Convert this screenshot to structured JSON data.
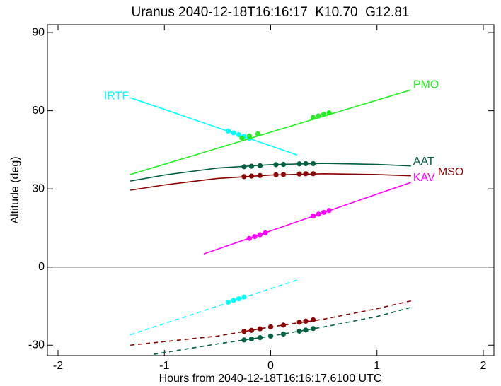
{
  "chart_data": {
    "type": "line",
    "title": "Uranus 2040-12-18T16:16:17  K10.70  G12.81",
    "xlabel": "Hours from 2040-12-18T16:16:17.6100 UTC",
    "ylabel": "Altitude (deg)",
    "xlim": [
      -2.1,
      2.1
    ],
    "xticks": [
      -2,
      -1,
      0,
      1,
      2
    ],
    "ylim": [
      -34,
      93
    ],
    "yticks": [
      -30,
      0,
      30,
      60,
      90
    ],
    "hline": 0,
    "series": [
      {
        "name": "IRTF",
        "color": "#00ffff",
        "label_at": "start",
        "x": [
          -1.32,
          0.25
        ],
        "values": [
          65,
          43
        ],
        "marker_x": [
          -0.4,
          -0.35,
          -0.3,
          -0.25,
          -0.2
        ],
        "marker_values": [
          52.2,
          51.5,
          50.8,
          50.1,
          49.4
        ]
      },
      {
        "name": "PMO",
        "color": "#22ee22",
        "label_at": "end",
        "x": [
          -1.32,
          1.32
        ],
        "values": [
          35.5,
          68
        ],
        "marker_x": [
          -0.27,
          -0.2,
          -0.12,
          0.4,
          0.45,
          0.5,
          0.55
        ],
        "marker_values": [
          49.5,
          50.3,
          51.1,
          57.4,
          58,
          58.6,
          59.2
        ]
      },
      {
        "name": "AAT",
        "color": "#006040",
        "label_at": "end",
        "x": [
          -1.32,
          -1,
          -0.5,
          0,
          0.5,
          1,
          1.32
        ],
        "values": [
          33,
          35.3,
          38,
          39.3,
          39.8,
          39.4,
          38.8
        ],
        "marker_x": [
          -0.25,
          -0.18,
          -0.1,
          0.05,
          0.12,
          0.27,
          0.33,
          0.4
        ],
        "marker_values": [
          38.5,
          38.7,
          38.9,
          39.3,
          39.4,
          39.6,
          39.7,
          39.7
        ]
      },
      {
        "name": "MSO",
        "color": "#8b0000",
        "label_at": "end",
        "x": [
          -1.32,
          -1,
          -0.5,
          0,
          0.5,
          1,
          1.32
        ],
        "values": [
          29.5,
          31.5,
          34,
          35.3,
          35.8,
          35.5,
          35
        ],
        "marker_x": [
          -0.25,
          -0.18,
          -0.1,
          0.05,
          0.12,
          0.27,
          0.33,
          0.4
        ],
        "marker_values": [
          34.7,
          34.9,
          35.1,
          35.4,
          35.5,
          35.7,
          35.8,
          35.8
        ]
      },
      {
        "name": "KAV",
        "color": "#ff00ff",
        "label_at": "end",
        "x": [
          -0.63,
          1.32
        ],
        "values": [
          5,
          32.5
        ],
        "marker_x": [
          -0.2,
          -0.15,
          -0.1,
          -0.05,
          0.4,
          0.45,
          0.5,
          0.55
        ],
        "marker_values": [
          11,
          11.7,
          12.4,
          13.1,
          19.6,
          20.3,
          21,
          21.7
        ]
      },
      {
        "color": "#00ffff",
        "dashed": true,
        "x": [
          -1.32,
          0.25
        ],
        "values": [
          -26,
          -5
        ],
        "marker_x": [
          -0.4,
          -0.35,
          -0.3,
          -0.25
        ],
        "marker_values": [
          -13.5,
          -12.8,
          -12.2,
          -11.5
        ]
      },
      {
        "color": "#8b0000",
        "dashed": true,
        "x": [
          -1.32,
          -0.5,
          0,
          0.5,
          1,
          1.32
        ],
        "values": [
          -30,
          -26.5,
          -23,
          -20,
          -16,
          -13
        ],
        "marker_x": [
          -0.25,
          -0.18,
          -0.1,
          0.0,
          0.12,
          0.27,
          0.33,
          0.4
        ],
        "marker_values": [
          -24.7,
          -24.3,
          -23.7,
          -23,
          -22.3,
          -21.2,
          -20.8,
          -20.3
        ]
      },
      {
        "color": "#006040",
        "dashed": true,
        "x": [
          -1.1,
          -0.5,
          0,
          0.5,
          1,
          1.32
        ],
        "values": [
          -33.5,
          -29.5,
          -26.5,
          -23,
          -19,
          -15.5
        ],
        "marker_x": [
          -0.25,
          -0.18,
          -0.1,
          0.0,
          0.12,
          0.27,
          0.33,
          0.4
        ],
        "marker_values": [
          -28,
          -27.6,
          -27.1,
          -26.5,
          -25.7,
          -24.6,
          -24.2,
          -23.6
        ]
      }
    ]
  }
}
